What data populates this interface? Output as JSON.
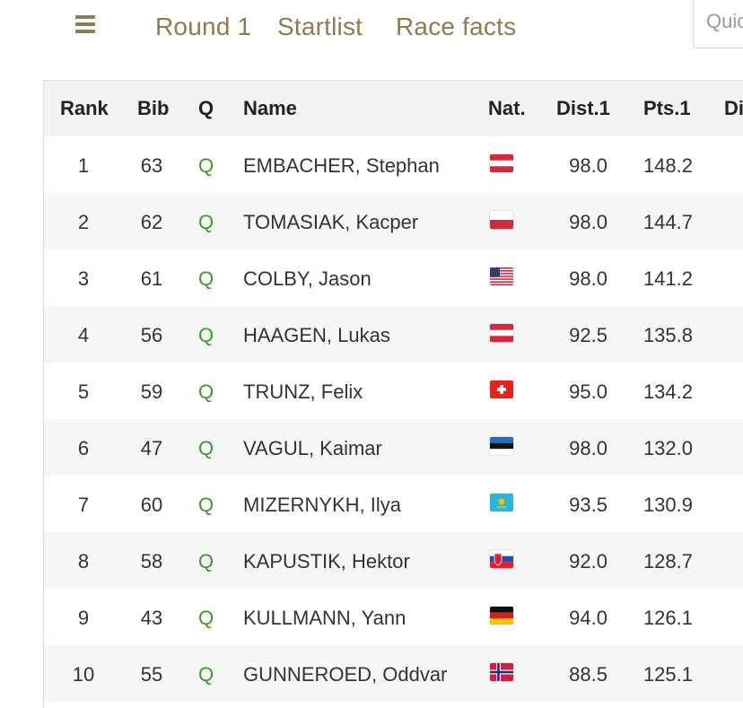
{
  "nav": {
    "menu_icon": "hamburger-menu-icon",
    "tabs": [
      "Round 1",
      "Startlist",
      "Race facts"
    ],
    "search_placeholder": "Quick"
  },
  "colors": {
    "accent": "#8b7d4f",
    "qualified": "#3c9a2a",
    "header_bg": "#f3f3f3",
    "row_alt": "#f6f6f6"
  },
  "table": {
    "headers": [
      "Rank",
      "Bib",
      "Q",
      "Name",
      "Nat.",
      "Dist.1",
      "Pts.1",
      "Di"
    ],
    "rows": [
      {
        "rank": "1",
        "bib": "63",
        "q": "Q",
        "name": "EMBACHER, Stephan",
        "nat": "AUT",
        "dist": "98.0",
        "pts": "148.2"
      },
      {
        "rank": "2",
        "bib": "62",
        "q": "Q",
        "name": "TOMASIAK, Kacper",
        "nat": "POL",
        "dist": "98.0",
        "pts": "144.7"
      },
      {
        "rank": "3",
        "bib": "61",
        "q": "Q",
        "name": "COLBY, Jason",
        "nat": "USA",
        "dist": "98.0",
        "pts": "141.2"
      },
      {
        "rank": "4",
        "bib": "56",
        "q": "Q",
        "name": "HAAGEN, Lukas",
        "nat": "AUT",
        "dist": "92.5",
        "pts": "135.8"
      },
      {
        "rank": "5",
        "bib": "59",
        "q": "Q",
        "name": "TRUNZ, Felix",
        "nat": "SUI",
        "dist": "95.0",
        "pts": "134.2"
      },
      {
        "rank": "6",
        "bib": "47",
        "q": "Q",
        "name": "VAGUL, Kaimar",
        "nat": "EST",
        "dist": "98.0",
        "pts": "132.0"
      },
      {
        "rank": "7",
        "bib": "60",
        "q": "Q",
        "name": "MIZERNYKH, Ilya",
        "nat": "KAZ",
        "dist": "93.5",
        "pts": "130.9"
      },
      {
        "rank": "8",
        "bib": "58",
        "q": "Q",
        "name": "KAPUSTIK, Hektor",
        "nat": "SVK",
        "dist": "92.0",
        "pts": "128.7"
      },
      {
        "rank": "9",
        "bib": "43",
        "q": "Q",
        "name": "KULLMANN, Yann",
        "nat": "GER",
        "dist": "94.0",
        "pts": "126.1"
      },
      {
        "rank": "10",
        "bib": "55",
        "q": "Q",
        "name": "GUNNEROED, Oddvar",
        "nat": "NOR",
        "dist": "88.5",
        "pts": "125.1"
      }
    ]
  }
}
